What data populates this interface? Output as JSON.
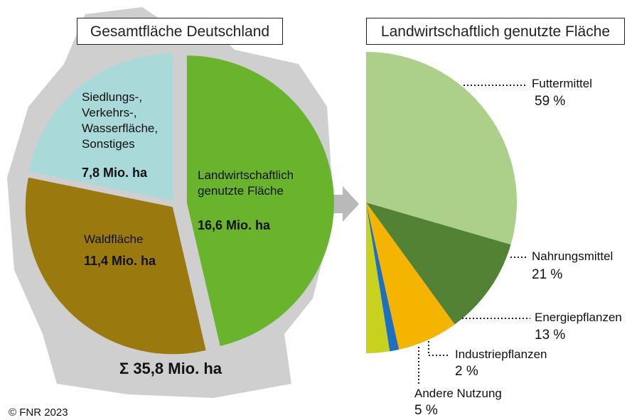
{
  "chart_data": [
    {
      "type": "pie",
      "title": "Gesamtfläche Deutschland",
      "categories": [
        "Landwirtschaftlich\ngenutzte Fläche",
        "Waldfläche",
        "Siedlungs-,\nVerkehrs-,\nWasserfläche,\nSonstiges"
      ],
      "values": [
        16.6,
        11.4,
        7.8
      ],
      "value_labels": [
        "16,6 Mio. ha",
        "11,4 Mio. ha",
        "7,8 Mio. ha"
      ],
      "colors": [
        "#6ab42d",
        "#9a7a0f",
        "#a9d9d9"
      ],
      "total_label": "Σ 35,8 Mio. ha"
    },
    {
      "type": "halfpie",
      "title": "Landwirtschaftlich genutzte Fläche",
      "categories": [
        "Futtermittel",
        "Nahrungsmittel",
        "Energiepflanzen",
        "Industriepflanzen",
        "Andere Nutzung"
      ],
      "values": [
        59,
        21,
        13,
        2,
        5
      ],
      "value_labels": [
        "59 %",
        "21 %",
        "13 %",
        "2 %",
        "5 %"
      ],
      "colors": [
        "#acd089",
        "#548235",
        "#f5b400",
        "#1f6fbf",
        "#c8d21e"
      ]
    }
  ],
  "footer": "© FNR 2023"
}
